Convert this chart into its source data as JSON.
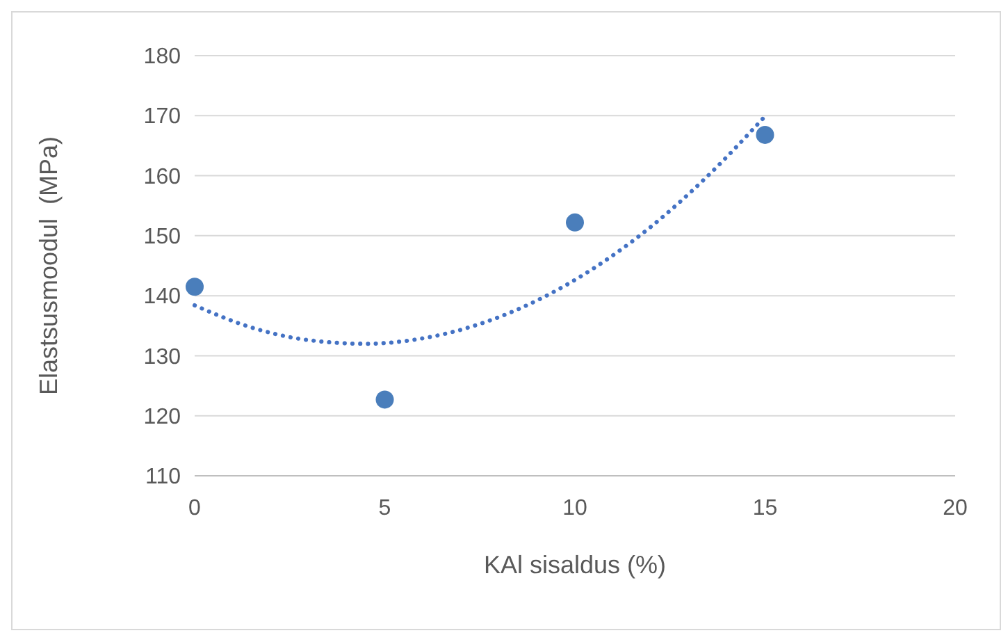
{
  "chart_data": {
    "type": "scatter",
    "xlabel": "KAl sisaldus (%)",
    "ylabel": "Elastsusmoodul  (MPa)",
    "xlim": [
      0,
      20
    ],
    "xticks": [
      0,
      5,
      10,
      15,
      20
    ],
    "ylim": [
      110,
      180
    ],
    "yticks": [
      110,
      120,
      130,
      140,
      150,
      160,
      170,
      180
    ],
    "grid": "y",
    "marker": "circle",
    "series": [
      {
        "type": "scatter",
        "color": "#4a7ebb",
        "x": [
          0,
          5,
          10,
          15
        ],
        "values": [
          141.5,
          122.7,
          152.2,
          166.8
        ]
      },
      {
        "type": "line",
        "color": "#4472c4",
        "line_style": "dotted",
        "marker": "none",
        "x": [
          0,
          1.5,
          3,
          4.5,
          6,
          7.5,
          9,
          10.5,
          12,
          13.5,
          15
        ],
        "values": [
          138.4,
          134.7,
          132.6,
          132,
          132.9,
          135.3,
          139.2,
          144.6,
          151.5,
          160,
          169.9
        ]
      }
    ]
  }
}
